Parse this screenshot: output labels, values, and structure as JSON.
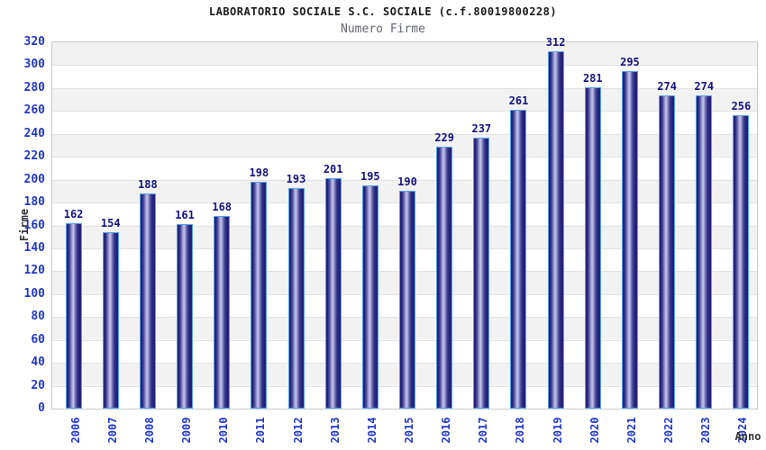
{
  "header": {
    "title": "LABORATORIO SOCIALE S.C. SOCIALE (c.f.80019800228)",
    "subtitle": "Numero Firme"
  },
  "chart_data": {
    "type": "bar",
    "title": "LABORATORIO SOCIALE S.C. SOCIALE (c.f.80019800228)",
    "subtitle": "Numero Firme",
    "xlabel": "Anno",
    "ylabel": "Firme",
    "categories": [
      "2006",
      "2007",
      "2008",
      "2009",
      "2010",
      "2011",
      "2012",
      "2013",
      "2014",
      "2015",
      "2016",
      "2017",
      "2018",
      "2019",
      "2020",
      "2021",
      "2022",
      "2023",
      "2024"
    ],
    "values": [
      162,
      154,
      188,
      161,
      168,
      198,
      193,
      201,
      195,
      190,
      229,
      237,
      261,
      312,
      281,
      295,
      274,
      274,
      256
    ],
    "ylim": [
      0,
      320
    ],
    "ytick_step": 20,
    "yticks": [
      0,
      20,
      40,
      60,
      80,
      100,
      120,
      140,
      160,
      180,
      200,
      220,
      240,
      260,
      280,
      300,
      320
    ],
    "grid": true,
    "legend": "none",
    "value_labels_shown": true,
    "colors": {
      "bar_dark": "#1e1e78",
      "bar_light": "#c6c6ec",
      "bar_border": "#58a0e8",
      "axis_tick_label": "#2238c4",
      "value_label": "#13137f",
      "band_gray": "#f2f2f2",
      "band_white": "#ffffff",
      "gridline": "#e2e2e2",
      "plot_border": "#c9c9c9",
      "title_color": "#1a1a1a",
      "subtitle_color": "#666670",
      "axis_title_color": "#333333",
      "background": "#ffffff"
    }
  }
}
